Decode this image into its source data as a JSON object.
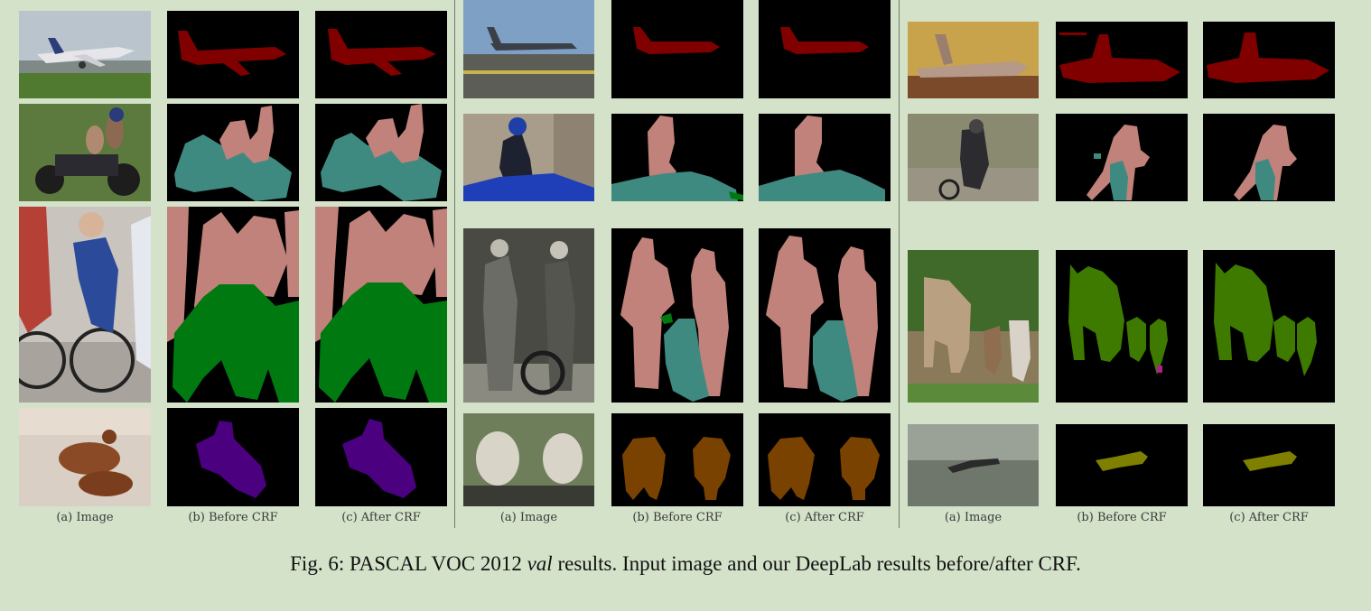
{
  "figure": {
    "caption_prefix": "Fig. 6: PASCAL VOC 2012 ",
    "caption_emphasis": "val",
    "caption_suffix": " results. Input image and our DeepLab results before/after CRF."
  },
  "columns": {
    "image_label": "(a) Image",
    "before_label": "(b) Before CRF",
    "after_label": "(c) After CRF"
  },
  "colors": {
    "background": "#d3e2c9",
    "aeroplane": "#800000",
    "person": "#c0827a",
    "motorbike": "#3f8a80",
    "bicycle": "#007a10",
    "dog": "#4b0080",
    "sheep": "#7a4200",
    "cow": "#3f7a00",
    "bird": "#808000"
  },
  "scenes": [
    {
      "name": "airplane-runway",
      "classes": [
        "aeroplane"
      ]
    },
    {
      "name": "family-on-motorbike",
      "classes": [
        "person",
        "motorbike"
      ]
    },
    {
      "name": "cyclists",
      "classes": [
        "person",
        "bicycle"
      ]
    },
    {
      "name": "dachshunds",
      "classes": [
        "dog"
      ]
    },
    {
      "name": "jet-on-tarmac",
      "classes": [
        "aeroplane"
      ]
    },
    {
      "name": "motorcyclist",
      "classes": [
        "person",
        "motorbike"
      ]
    },
    {
      "name": "couple-with-motorbike",
      "classes": [
        "person",
        "motorbike"
      ]
    },
    {
      "name": "two-sheep",
      "classes": [
        "sheep"
      ]
    },
    {
      "name": "plane-at-sunset",
      "classes": [
        "aeroplane"
      ]
    },
    {
      "name": "dirt-bike-rider",
      "classes": [
        "person",
        "motorbike"
      ]
    },
    {
      "name": "cows-in-field",
      "classes": [
        "cow"
      ]
    },
    {
      "name": "bird-over-water",
      "classes": [
        "bird"
      ]
    }
  ]
}
